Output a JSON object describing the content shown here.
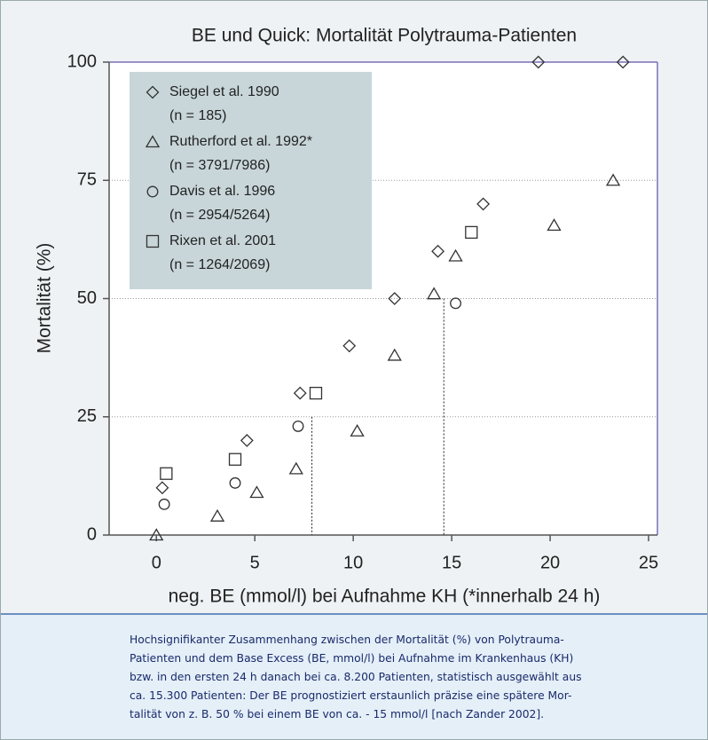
{
  "chart_data": {
    "type": "scatter",
    "title": "BE und Quick: Mortalität Polytrauma-Patienten",
    "x_label": "neg. BE (mmol/l) bei Aufnahme KH (*innerhalb 24 h)",
    "y_label": "Mortalität (%)",
    "xlim": [
      -2.4,
      25.45
    ],
    "ylim": [
      0,
      100
    ],
    "xticks": [
      0,
      5,
      10,
      15,
      20,
      25
    ],
    "yticks": [
      0,
      25,
      50,
      75,
      100
    ],
    "grid": true,
    "legend": "upper left",
    "series": [
      {
        "name": "Siegel et al. 1990",
        "sample": "(n = 185)",
        "marker": "diamond",
        "color": "#333333",
        "x": [
          0.3,
          4.6,
          7.3,
          9.8,
          12.1,
          14.3,
          16.6,
          19.4,
          23.7
        ],
        "values": [
          10,
          20,
          30,
          40,
          50,
          60,
          70,
          100,
          100
        ]
      },
      {
        "name": "Rutherford et al. 1992*",
        "sample": "(n = 3791/7986)",
        "marker": "triangle",
        "color": "#333333",
        "x": [
          0,
          3.1,
          5.1,
          7.1,
          10.2,
          12.1,
          14.1,
          15.2,
          20.2,
          23.2
        ],
        "values": [
          0,
          4,
          9,
          14,
          22,
          38,
          51,
          59,
          65.5,
          75
        ]
      },
      {
        "name": "Davis et al. 1996",
        "sample": "(n = 2954/5264)",
        "marker": "circle",
        "color": "#333333",
        "x": [
          0.4,
          4.0,
          7.2,
          15.2
        ],
        "values": [
          6.5,
          11,
          23,
          49
        ]
      },
      {
        "name": "Rixen et al. 2001",
        "sample": "(n = 1264/2069)",
        "marker": "square",
        "color": "#333333",
        "x": [
          0.5,
          4.0,
          8.1,
          16.0
        ],
        "values": [
          13,
          16,
          30,
          64
        ]
      }
    ],
    "reference_lines": [
      {
        "x": 7.9,
        "y": 25
      },
      {
        "x": 14.6,
        "y": 50
      }
    ]
  },
  "caption": {
    "lines": [
      "Hochsignifikanter Zusammenhang zwischen der Mortalität (%) von Polytrauma-",
      "Patienten und dem Base Excess (BE, mmol/l) bei Aufnahme im Krankenhaus (KH)",
      "bzw. in den ersten 24 h danach bei ca. 8.200 Patienten, statistisch ausgewählt aus",
      "ca. 15.300 Patienten: Der BE prognostiziert erstaunlich präzise eine spätere Mor-",
      "talität von z. B. 50 % bei einem BE von ca. - 15 mmol/l [nach Zander 2002]."
    ]
  }
}
